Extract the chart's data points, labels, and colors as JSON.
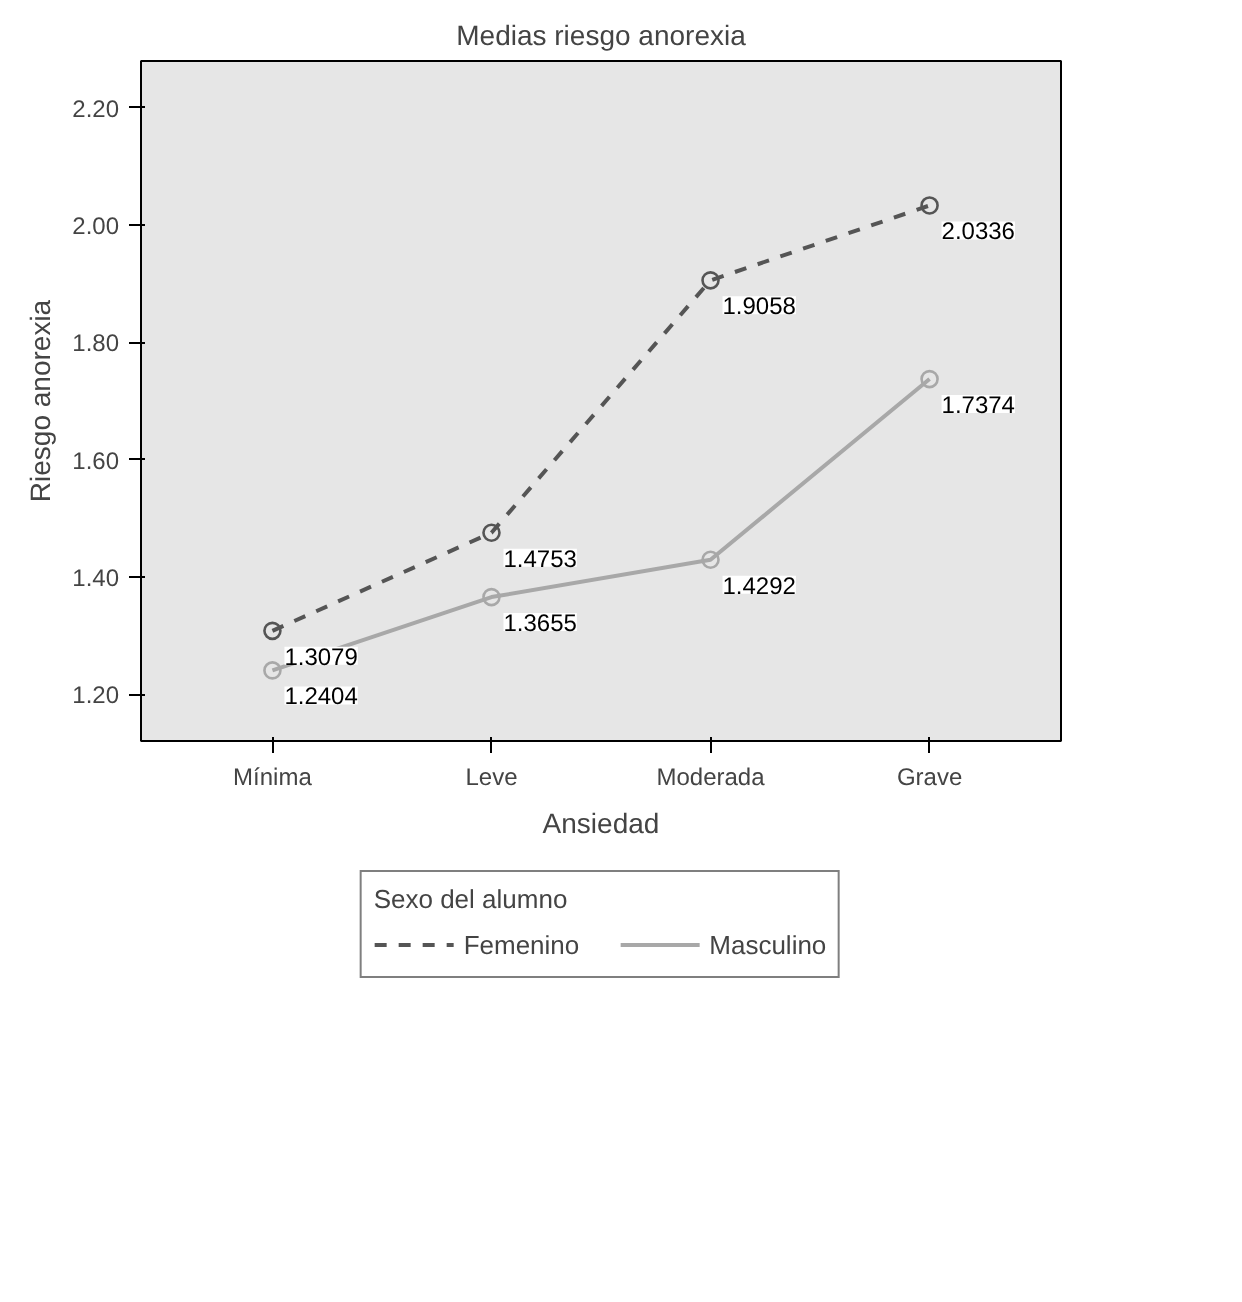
{
  "chart_data": {
    "type": "line",
    "title": "Medias riesgo anorexia",
    "xlabel": "Ansiedad",
    "ylabel": "Riesgo anorexia",
    "legend_title": "Sexo del alumno",
    "categories": [
      "Mínima",
      "Leve",
      "Moderada",
      "Grave"
    ],
    "series": [
      {
        "name": "Femenino",
        "color": "#555555",
        "line_style": "dashed",
        "values": [
          1.3079,
          1.4753,
          1.9058,
          2.0336
        ]
      },
      {
        "name": "Masculino",
        "color": "#a8a8a8",
        "line_style": "solid",
        "values": [
          1.2404,
          1.3655,
          1.4292,
          1.7374
        ]
      }
    ],
    "ylim": [
      1.12,
      2.28
    ],
    "yticks": [
      {
        "value": 1.2,
        "label": "1.20"
      },
      {
        "value": 1.4,
        "label": "1.40"
      },
      {
        "value": 1.6,
        "label": "1.60"
      },
      {
        "value": 1.8,
        "label": "1.80"
      },
      {
        "value": 2.0,
        "label": "2.00"
      },
      {
        "value": 2.2,
        "label": "2.20"
      }
    ],
    "data_labels": true,
    "marker": "circle",
    "grid": false,
    "legend": "bottom"
  }
}
